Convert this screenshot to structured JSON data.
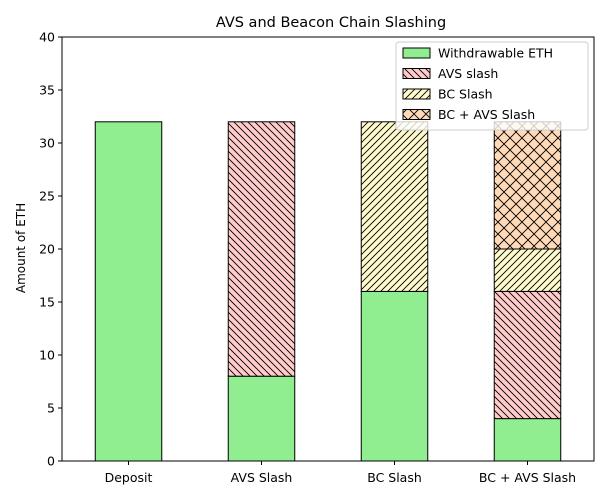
{
  "chart_data": {
    "type": "bar",
    "stacked": true,
    "title": "AVS and Beacon Chain Slashing",
    "xlabel": "",
    "ylabel": "Amount of ETH",
    "ylim": [
      0,
      40
    ],
    "yticks": [
      0,
      5,
      10,
      15,
      20,
      25,
      30,
      35,
      40
    ],
    "grid": false,
    "legend_position": "top-right",
    "categories": [
      "Deposit",
      "AVS Slash",
      "BC Slash",
      "BC + AVS Slash"
    ],
    "series": [
      {
        "name": "Withdrawable ETH",
        "values": [
          32,
          8,
          16,
          4
        ],
        "color": "#90ee90",
        "hatch": "none"
      },
      {
        "name": "AVS slash",
        "values": [
          0,
          24,
          0,
          12
        ],
        "color": "#ffcccb",
        "hatch": "backslash"
      },
      {
        "name": "BC Slash",
        "values": [
          0,
          0,
          16,
          4
        ],
        "color": "#fffacd",
        "hatch": "slash"
      },
      {
        "name": "BC + AVS Slash",
        "values": [
          0,
          0,
          0,
          12
        ],
        "color": "#ffdab9",
        "hatch": "cross"
      }
    ]
  }
}
